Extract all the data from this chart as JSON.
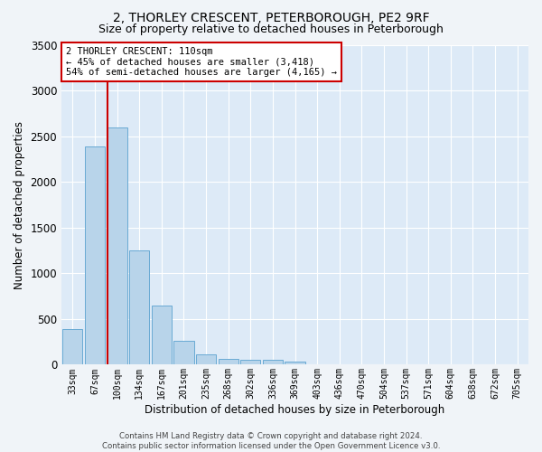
{
  "title": "2, THORLEY CRESCENT, PETERBOROUGH, PE2 9RF",
  "subtitle": "Size of property relative to detached houses in Peterborough",
  "xlabel": "Distribution of detached houses by size in Peterborough",
  "ylabel": "Number of detached properties",
  "bar_labels": [
    "33sqm",
    "67sqm",
    "100sqm",
    "134sqm",
    "167sqm",
    "201sqm",
    "235sqm",
    "268sqm",
    "302sqm",
    "336sqm",
    "369sqm",
    "403sqm",
    "436sqm",
    "470sqm",
    "504sqm",
    "537sqm",
    "571sqm",
    "604sqm",
    "638sqm",
    "672sqm",
    "705sqm"
  ],
  "bar_values": [
    390,
    2390,
    2600,
    1250,
    650,
    265,
    110,
    60,
    55,
    50,
    35,
    0,
    0,
    0,
    0,
    0,
    0,
    0,
    0,
    0,
    0
  ],
  "bar_color": "#b8d4ea",
  "bar_edge_color": "#6aaad4",
  "bg_color": "#ddeaf7",
  "grid_color": "#ffffff",
  "vline_color": "#cc0000",
  "vline_x_index": 2,
  "ylim": [
    0,
    3500
  ],
  "yticks": [
    0,
    500,
    1000,
    1500,
    2000,
    2500,
    3000,
    3500
  ],
  "annotation_text": "2 THORLEY CRESCENT: 110sqm\n← 45% of detached houses are smaller (3,418)\n54% of semi-detached houses are larger (4,165) →",
  "footer": "Contains HM Land Registry data © Crown copyright and database right 2024.\nContains public sector information licensed under the Open Government Licence v3.0.",
  "fig_facecolor": "#f0f4f8",
  "title_fontsize": 10,
  "subtitle_fontsize": 9
}
